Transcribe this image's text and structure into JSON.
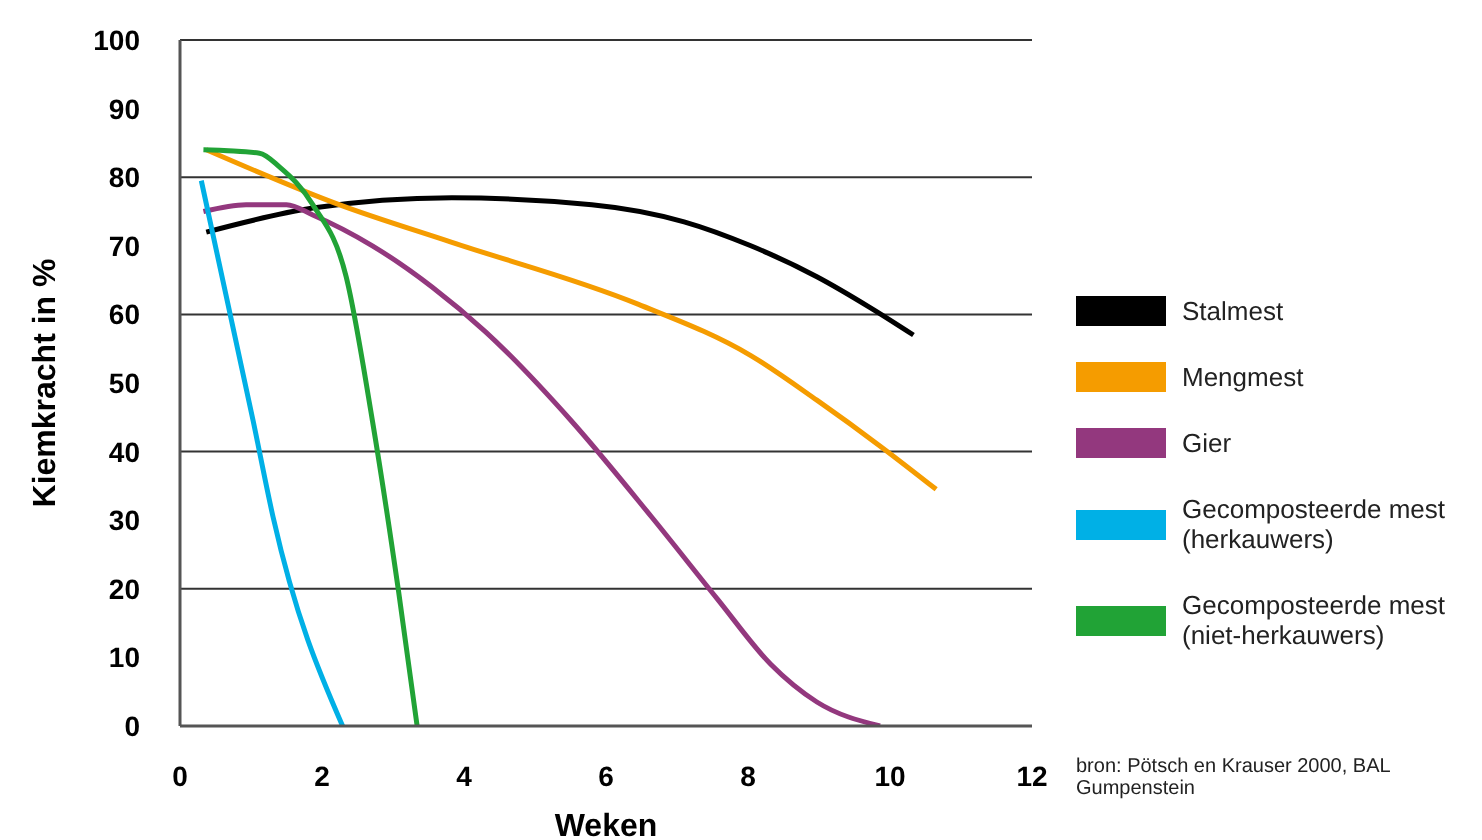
{
  "chart_data": {
    "type": "line",
    "xlabel": "Weken",
    "ylabel": "Kiemkracht in %",
    "xlim": [
      0,
      12
    ],
    "xticks": [
      0,
      2,
      4,
      6,
      8,
      10,
      12
    ],
    "ylim": [
      0,
      100
    ],
    "yticks": [
      0,
      10,
      20,
      30,
      40,
      50,
      60,
      70,
      80,
      90,
      100
    ],
    "grid": "y",
    "legend": "right",
    "marker": "none",
    "line_style": "solid",
    "series": [
      {
        "name": "Stalmest",
        "color": "#000000",
        "x": [
          0.37,
          1.87,
          3.83,
          5.8,
          7.1,
          8.04,
          8.97,
          9.72,
          10.33
        ],
        "values": [
          72,
          75.5,
          77,
          76,
          73.5,
          70,
          65.5,
          61,
          57
        ]
      },
      {
        "name": "Mengmest",
        "color": "#f59c00",
        "x": [
          0.37,
          2.24,
          3.83,
          6.45,
          8.04,
          8.97,
          9.9,
          10.65
        ],
        "values": [
          84,
          76,
          70.5,
          61.5,
          54,
          47.5,
          40.5,
          34.5
        ]
      },
      {
        "name": "Gier",
        "color": "#93387e",
        "x": [
          0.33,
          0.93,
          1.5,
          1.87,
          2.71,
          3.55,
          4.3,
          5.51,
          6.64,
          7.57,
          8.32,
          8.97,
          9.86
        ],
        "values": [
          75,
          76,
          76,
          74.5,
          70,
          64,
          57.5,
          44.5,
          30.5,
          18.5,
          9,
          3.5,
          0
        ]
      },
      {
        "name": "Gecomposteerde mest (herkauwers)",
        "color": "#00b0e6",
        "x": [
          0.3,
          1.03,
          1.31,
          2.29
        ],
        "values": [
          79.5,
          44.5,
          30.5,
          0
        ]
      },
      {
        "name": "Gecomposteerde mest (niet-herkauwers)",
        "color": "#21a336",
        "x": [
          0.33,
          1.12,
          1.4,
          1.87,
          2.34,
          2.71,
          3.08,
          3.34
        ],
        "values": [
          84,
          83.5,
          81.5,
          76,
          65.5,
          44.5,
          19.5,
          0
        ]
      }
    ],
    "annotations": [
      "bron: Pötsch en Krauser 2000, BAL Gumpenstein"
    ]
  }
}
